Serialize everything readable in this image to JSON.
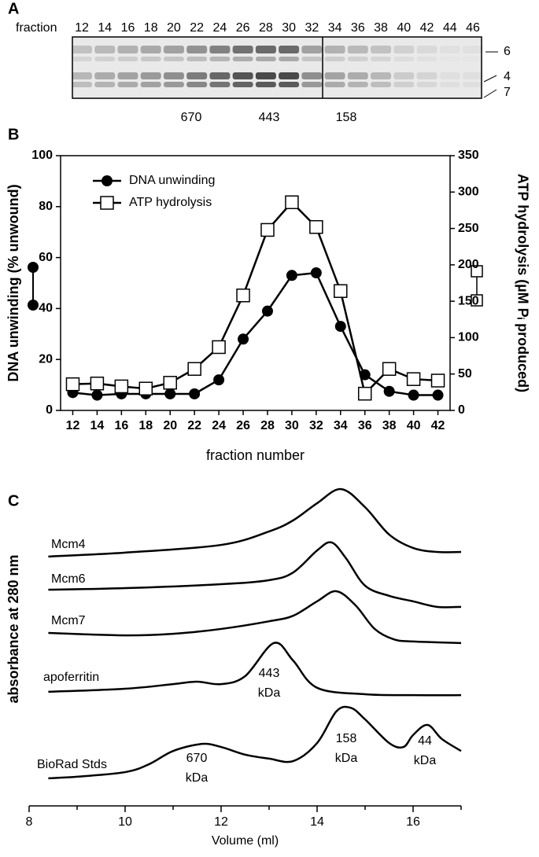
{
  "gel": {
    "panel": "A",
    "lane_header": "fraction",
    "lanes": [
      12,
      14,
      16,
      18,
      20,
      22,
      24,
      26,
      28,
      30,
      32,
      34,
      36,
      38,
      40,
      42,
      44,
      46
    ],
    "standards": [
      "670",
      "443",
      "158"
    ],
    "bands": [
      "6",
      "4",
      "7"
    ]
  },
  "chart_data": [
    {
      "panel": "B",
      "type": "line",
      "x": [
        12,
        14,
        16,
        18,
        20,
        22,
        24,
        26,
        28,
        30,
        32,
        34,
        36,
        38,
        40,
        42
      ],
      "xlim": [
        11,
        43
      ],
      "xticks": [
        12,
        14,
        16,
        18,
        20,
        22,
        24,
        26,
        28,
        30,
        32,
        34,
        36,
        38,
        40,
        42
      ],
      "xlabel": "fraction number",
      "ylabel": "DNA unwinding (% unwound)",
      "y2label": "ATP hydrolysis (µM Pᵢ produced)",
      "ylim": [
        0,
        100
      ],
      "yticks": [
        0,
        20,
        40,
        60,
        80,
        100
      ],
      "y2lim": [
        0,
        350
      ],
      "y2ticks": [
        0,
        50,
        100,
        150,
        200,
        250,
        300,
        350
      ],
      "legend": "upper left",
      "series": [
        {
          "name": "DNA unwinding",
          "color": "#000000",
          "marker": "circle",
          "values": [
            7,
            6,
            6.5,
            6.5,
            6.5,
            6.5,
            12,
            28,
            39,
            53,
            54,
            33,
            14,
            7.5,
            6,
            6
          ]
        },
        {
          "name": "ATP hydrolysis",
          "color": "#000000",
          "marker": "square",
          "axis": "y2",
          "values": [
            36,
            37,
            33,
            30,
            38,
            57,
            87,
            158,
            248,
            286,
            252,
            164,
            23,
            57,
            43,
            41
          ]
        }
      ]
    },
    {
      "panel": "C",
      "type": "line",
      "xlabel": "Volume (ml)",
      "ylabel": "absorbance at 280 nm",
      "xlim": [
        8,
        17
      ],
      "xticks": [
        8,
        10,
        12,
        14,
        16
      ],
      "xminor": [
        9,
        11,
        13,
        15,
        17
      ],
      "ylim": [
        0,
        100
      ],
      "series": [
        {
          "name": "Mcm4",
          "color": "#000000",
          "x": [
            8.4,
            10,
            12,
            13,
            13.5,
            14,
            14.5,
            15,
            15.5,
            16,
            16.5,
            17
          ],
          "values": [
            74.9,
            76.2,
            78.7,
            83.1,
            86.7,
            92.3,
            96.9,
            91.0,
            82.1,
            77.7,
            76.4,
            76.4
          ]
        },
        {
          "name": "Mcm6",
          "color": "#000000",
          "x": [
            8.4,
            10,
            12,
            13,
            13.5,
            14,
            14.3,
            14.6,
            15,
            15.5,
            16,
            16.5,
            17
          ],
          "values": [
            64.1,
            64.6,
            65.9,
            67.2,
            69.7,
            76.9,
            79.5,
            74.4,
            65.4,
            62.1,
            60.3,
            58.5,
            58.5
          ]
        },
        {
          "name": "Mcm7",
          "color": "#000000",
          "x": [
            8.4,
            10,
            11,
            12,
            13,
            13.5,
            14,
            14.4,
            14.8,
            15.2,
            15.6,
            16,
            17
          ],
          "values": [
            50.0,
            49.2,
            49.7,
            51.3,
            53.8,
            55.6,
            60.3,
            63.6,
            59.0,
            51.3,
            47.9,
            47.2,
            46.7
          ]
        },
        {
          "name": "apoferritin",
          "color": "#000000",
          "x": [
            8.4,
            10,
            11,
            11.5,
            12,
            12.5,
            13.1,
            13.5,
            14,
            15,
            16,
            17
          ],
          "values": [
            30.8,
            31.8,
            33.3,
            34.1,
            33.3,
            35.9,
            46.7,
            41.0,
            32.1,
            30.0,
            29.7,
            29.7
          ]
        },
        {
          "name": "BioRad Stds",
          "color": "#000000",
          "x": [
            8.4,
            9,
            10,
            10.5,
            11,
            11.6,
            12,
            12.5,
            13,
            13.5,
            14,
            14.4,
            14.7,
            15,
            15.5,
            15.8,
            16,
            16.3,
            16.6,
            17
          ],
          "values": [
            2.6,
            3.1,
            4.6,
            7.2,
            11.5,
            13.8,
            12.8,
            10.3,
            9.0,
            8.2,
            14.1,
            24.4,
            25.6,
            21.8,
            14.1,
            12.8,
            16.7,
            20.0,
            15.4,
            11.5
          ]
        }
      ],
      "annotations": [
        {
          "mass": "670",
          "unit": "kDa"
        },
        {
          "mass": "443",
          "unit": "kDa"
        },
        {
          "mass": "158",
          "unit": "kDa"
        },
        {
          "mass": "44",
          "unit": "kDa"
        }
      ]
    }
  ]
}
